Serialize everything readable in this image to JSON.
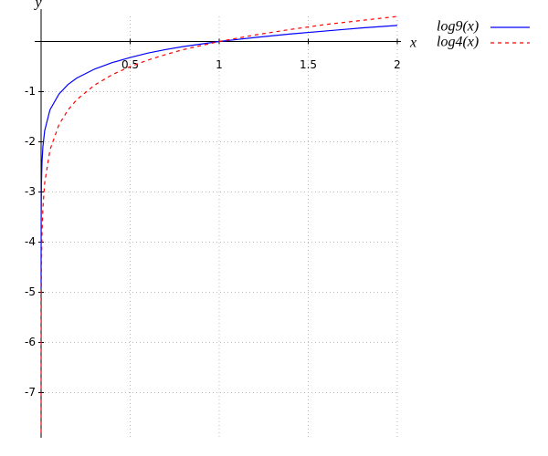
{
  "chart_data": {
    "type": "line",
    "x_label": "x",
    "y_label": "y",
    "x": [
      2e-05,
      0.0001,
      0.0005,
      0.002,
      0.005,
      0.01,
      0.02,
      0.05,
      0.1,
      0.15,
      0.2,
      0.3,
      0.4,
      0.5,
      0.6,
      0.7,
      0.8,
      0.9,
      1,
      1.2,
      1.4,
      1.6,
      1.8,
      2
    ],
    "series": [
      {
        "name": "log9(x)",
        "color": "#0000ff",
        "dash": false,
        "values": [
          -4.92,
          -4.19,
          -3.46,
          -2.83,
          -2.41,
          -2.1,
          -1.78,
          -1.36,
          -1.05,
          -0.86,
          -0.73,
          -0.55,
          -0.42,
          -0.32,
          -0.23,
          -0.16,
          -0.1,
          -0.05,
          0,
          0.08,
          0.15,
          0.21,
          0.27,
          0.32
        ]
      },
      {
        "name": "log4(x)",
        "color": "#ff0000",
        "dash": true,
        "values": [
          -7.8,
          -6.64,
          -5.48,
          -4.48,
          -3.82,
          -3.32,
          -2.82,
          -2.16,
          -1.66,
          -1.37,
          -1.16,
          -0.87,
          -0.66,
          -0.5,
          -0.37,
          -0.26,
          -0.16,
          -0.08,
          0,
          0.13,
          0.24,
          0.34,
          0.42,
          0.5
        ]
      }
    ],
    "xlim": [
      0,
      2
    ],
    "ylim": [
      -7.9,
      0.5
    ],
    "xticks": [
      0.5,
      1,
      1.5,
      2
    ],
    "yticks": [
      -1,
      -2,
      -3,
      -4,
      -5,
      -6,
      -7
    ],
    "grid": true,
    "legend": "upper-right"
  }
}
